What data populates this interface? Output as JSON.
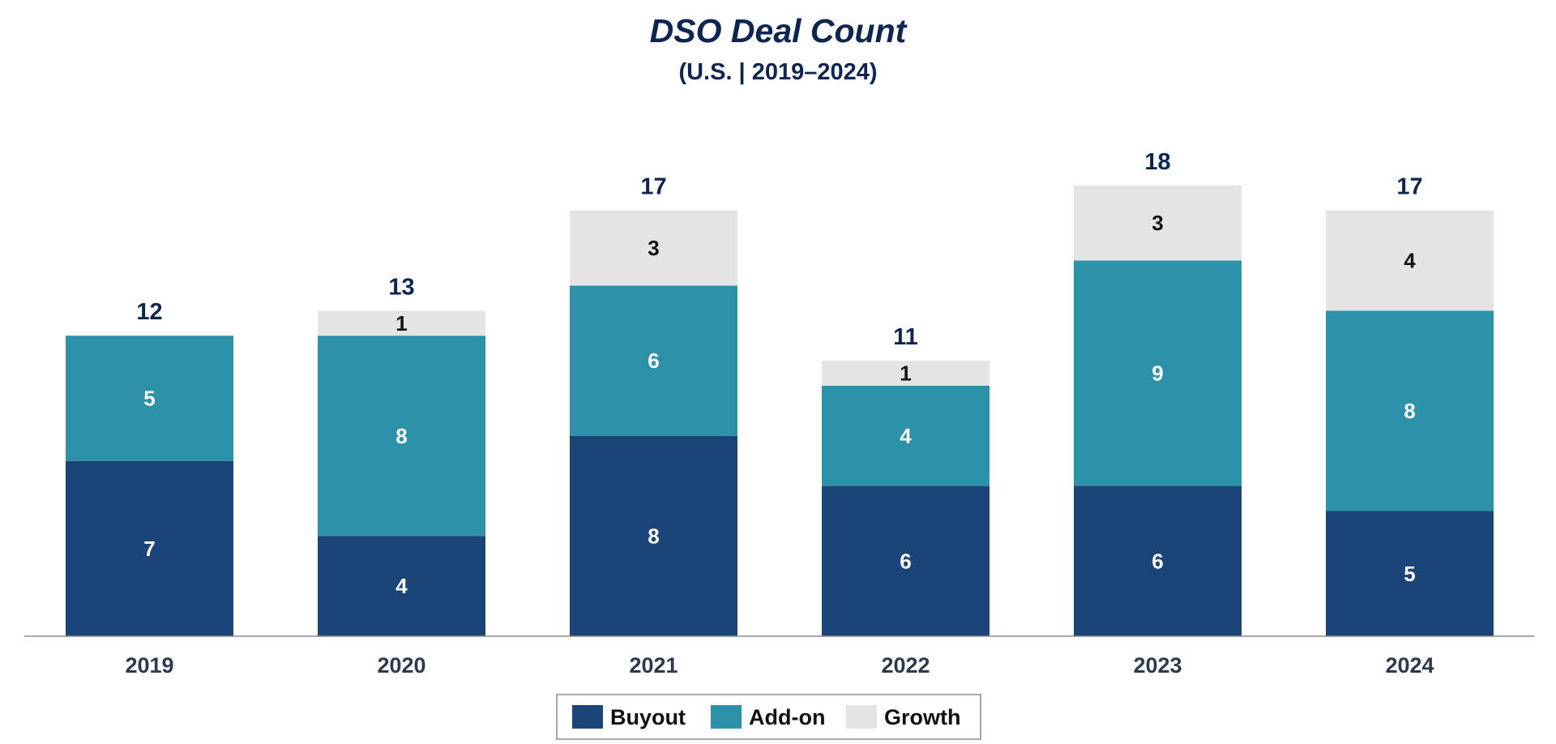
{
  "chart_data": {
    "type": "bar",
    "stacked": true,
    "title": "DSO Deal Count",
    "subtitle": "(U.S. | 2019–2024)",
    "categories": [
      "2019",
      "2020",
      "2021",
      "2022",
      "2023",
      "2024"
    ],
    "series": [
      {
        "name": "Buyout",
        "values": [
          7,
          4,
          8,
          6,
          6,
          5
        ],
        "color": "#1b4578"
      },
      {
        "name": "Add-on",
        "values": [
          5,
          8,
          6,
          4,
          9,
          8
        ],
        "color": "#2b92aa"
      },
      {
        "name": "Growth",
        "values": [
          0,
          1,
          3,
          1,
          3,
          4
        ],
        "color": "#e4e4e4"
      }
    ],
    "totals": [
      12,
      13,
      17,
      11,
      18,
      17
    ],
    "legend_position": "bottom-center",
    "grid": false,
    "ylim": [
      0,
      18
    ]
  },
  "colors": {
    "title": "#0d2550",
    "axis": "#8a8a8a",
    "label_dark": "#111111",
    "label_light": "#ffffff"
  }
}
